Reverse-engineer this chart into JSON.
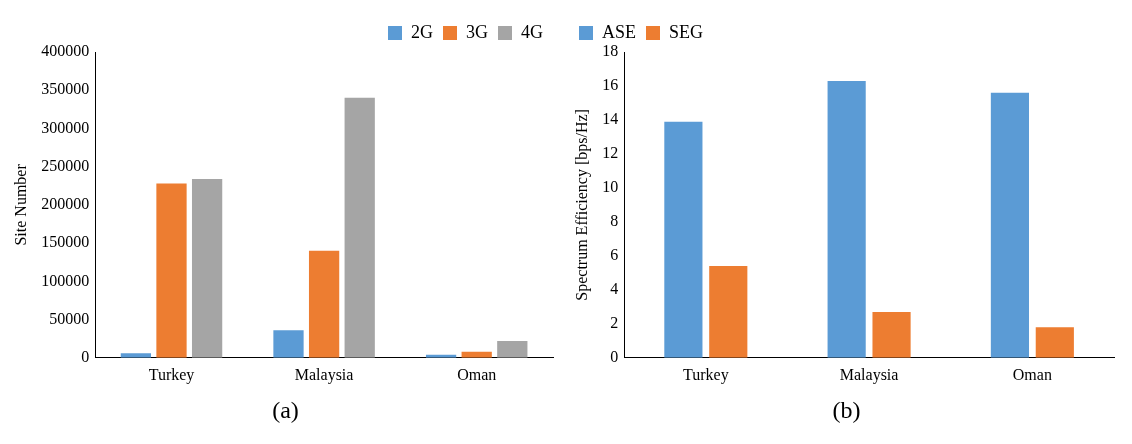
{
  "chart_data": [
    {
      "type": "bar",
      "annotations": [
        "(a)"
      ],
      "ylabel": "Site Number",
      "categories": [
        "Turkey",
        "Malaysia",
        "Oman"
      ],
      "series": [
        {
          "name": "2G",
          "color": "#5b9bd5",
          "values": [
            6000,
            36000,
            4000
          ]
        },
        {
          "name": "3G",
          "color": "#ed7d31",
          "values": [
            228000,
            140000,
            8000
          ]
        },
        {
          "name": "4G",
          "color": "#a5a5a5",
          "values": [
            234000,
            340000,
            22000
          ]
        }
      ],
      "ylim": [
        0,
        400000
      ],
      "yticks": [
        0,
        50000,
        100000,
        150000,
        200000,
        250000,
        300000,
        350000,
        400000
      ],
      "grid": false,
      "legend": "top right"
    },
    {
      "type": "bar",
      "annotations": [
        "(b)"
      ],
      "ylabel": "Spectrum Efficiency [bps/Hz]",
      "categories": [
        "Turkey",
        "Malaysia",
        "Oman"
      ],
      "series": [
        {
          "name": "ASE",
          "color": "#5b9bd5",
          "values": [
            13.9,
            16.3,
            15.6
          ]
        },
        {
          "name": "SEG",
          "color": "#ed7d31",
          "values": [
            5.4,
            2.7,
            1.8
          ]
        }
      ],
      "ylim": [
        0,
        18
      ],
      "yticks": [
        0,
        2,
        4,
        6,
        8,
        10,
        12,
        14,
        16,
        18
      ],
      "grid": false,
      "legend": "top left"
    }
  ]
}
